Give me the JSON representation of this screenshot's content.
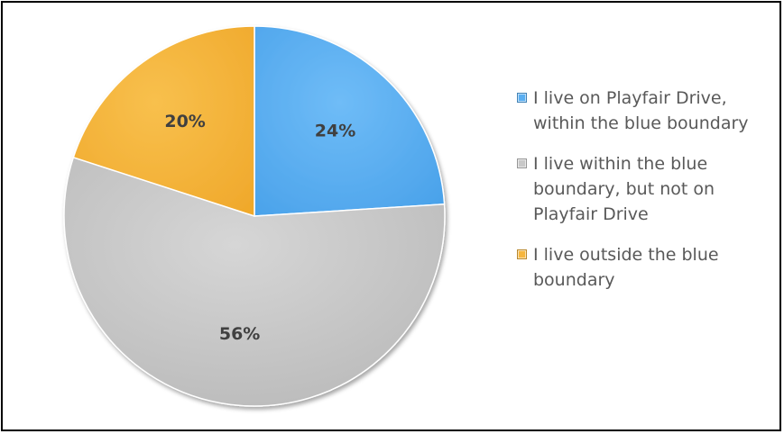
{
  "chart_data": {
    "type": "pie",
    "slices": [
      {
        "label": "I live on Playfair Drive, within the blue boundary",
        "value": 24,
        "display": "24%",
        "color": "#5aaff2"
      },
      {
        "label": "I live within the blue boundary, but not on Playfair Drive",
        "value": 56,
        "display": "56%",
        "color": "#c8c8c8"
      },
      {
        "label": "I live outside the blue boundary",
        "value": 20,
        "display": "20%",
        "color": "#f6b63e"
      }
    ],
    "start_angle_deg": 0,
    "direction": "clockwise",
    "legend_position": "right"
  },
  "legend": {
    "items": [
      {
        "text": "I live on Playfair Drive, within the blue boundary"
      },
      {
        "text": "I live within the blue boundary, but not on Playfair Drive"
      },
      {
        "text": "I live outside the blue boundary"
      }
    ]
  }
}
